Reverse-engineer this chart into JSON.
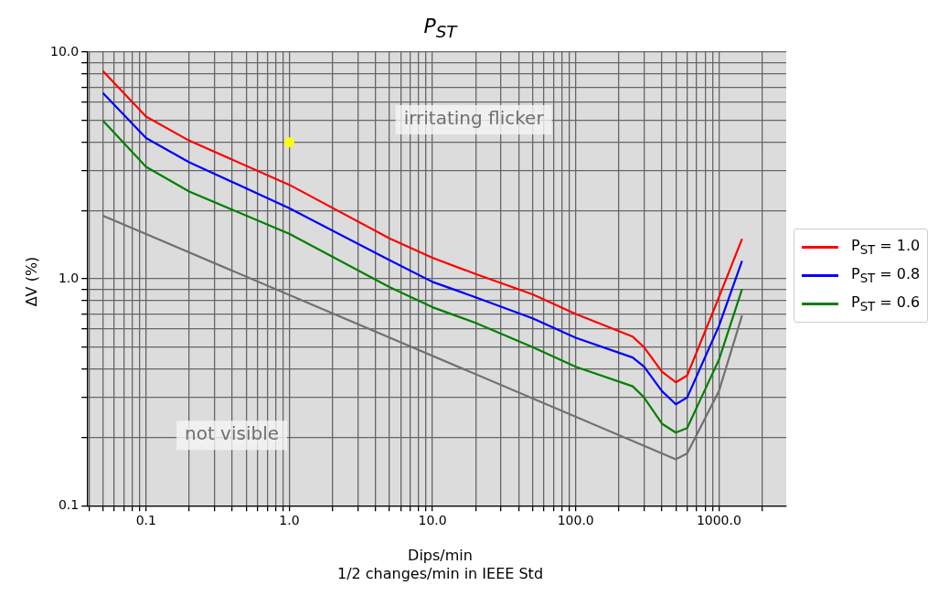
{
  "chart_data": {
    "type": "line",
    "title": "P$_{ST}$",
    "xlabel": "Dips/min\n1/2 changes/min in IEEE Std",
    "ylabel": "ΔV (%)",
    "log": "xy",
    "grid": true,
    "legend": "right",
    "xlim": [
      0.0387,
      2950
    ],
    "ylim": [
      0.1,
      10
    ],
    "xticks": [
      {
        "value": 0.04,
        "label": null
      },
      {
        "value": 0.05,
        "label": null
      },
      {
        "value": 0.06,
        "label": null
      },
      {
        "value": 0.07,
        "label": null
      },
      {
        "value": 0.08,
        "label": null
      },
      {
        "value": 0.09,
        "label": null
      },
      {
        "value": 0.1,
        "label": "0.1"
      },
      {
        "value": 0.2,
        "label": null
      },
      {
        "value": 0.3,
        "label": null
      },
      {
        "value": 0.4,
        "label": null
      },
      {
        "value": 0.5,
        "label": null
      },
      {
        "value": 0.6,
        "label": null
      },
      {
        "value": 0.7,
        "label": null
      },
      {
        "value": 0.8,
        "label": null
      },
      {
        "value": 0.9,
        "label": null
      },
      {
        "value": 1,
        "label": "1.0"
      },
      {
        "value": 2,
        "label": null
      },
      {
        "value": 3,
        "label": null
      },
      {
        "value": 4,
        "label": null
      },
      {
        "value": 5,
        "label": null
      },
      {
        "value": 6,
        "label": null
      },
      {
        "value": 7,
        "label": null
      },
      {
        "value": 8,
        "label": null
      },
      {
        "value": 9,
        "label": null
      },
      {
        "value": 10,
        "label": "10.0"
      },
      {
        "value": 20,
        "label": null
      },
      {
        "value": 30,
        "label": null
      },
      {
        "value": 40,
        "label": null
      },
      {
        "value": 50,
        "label": null
      },
      {
        "value": 60,
        "label": null
      },
      {
        "value": 70,
        "label": null
      },
      {
        "value": 80,
        "label": null
      },
      {
        "value": 90,
        "label": null
      },
      {
        "value": 100,
        "label": "100.0"
      },
      {
        "value": 200,
        "label": null
      },
      {
        "value": 300,
        "label": null
      },
      {
        "value": 400,
        "label": null
      },
      {
        "value": 500,
        "label": null
      },
      {
        "value": 600,
        "label": null
      },
      {
        "value": 700,
        "label": null
      },
      {
        "value": 800,
        "label": null
      },
      {
        "value": 900,
        "label": null
      },
      {
        "value": 1000,
        "label": "1000.0"
      },
      {
        "value": 2000,
        "label": null
      }
    ],
    "yticks": [
      {
        "value": 0.1,
        "label": "0.1"
      },
      {
        "value": 0.2,
        "label": null
      },
      {
        "value": 0.3,
        "label": null
      },
      {
        "value": 0.4,
        "label": null
      },
      {
        "value": 0.5,
        "label": null
      },
      {
        "value": 0.6,
        "label": null
      },
      {
        "value": 0.7,
        "label": null
      },
      {
        "value": 0.8,
        "label": null
      },
      {
        "value": 0.9,
        "label": null
      },
      {
        "value": 1,
        "label": "1.0"
      },
      {
        "value": 2,
        "label": null
      },
      {
        "value": 3,
        "label": null
      },
      {
        "value": 4,
        "label": null
      },
      {
        "value": 5,
        "label": null
      },
      {
        "value": 6,
        "label": null
      },
      {
        "value": 7,
        "label": null
      },
      {
        "value": 8,
        "label": null
      },
      {
        "value": 9,
        "label": null
      },
      {
        "value": 10,
        "label": "10.0"
      }
    ],
    "annotations": [
      "irritating flicker",
      "not visible"
    ],
    "series": [
      {
        "name": "P$_{ST}$ = 1.0",
        "color": "#ff0000",
        "x": [
          0.05,
          0.1,
          0.2,
          1,
          5,
          10,
          20,
          50,
          100,
          250,
          300,
          400,
          500,
          600,
          1000,
          1450
        ],
        "values": [
          8.25,
          5.2,
          4.07,
          2.6,
          1.51,
          1.24,
          1.05,
          0.855,
          0.7,
          0.556,
          0.5,
          0.39,
          0.35,
          0.375,
          0.83,
          1.5
        ]
      },
      {
        "name": "P$_{ST}$ = 0.8",
        "color": "#0000ff",
        "x": [
          0.05,
          0.1,
          0.2,
          1,
          5,
          10,
          20,
          50,
          100,
          250,
          300,
          400,
          500,
          600,
          1000,
          1450
        ],
        "values": [
          6.6,
          4.18,
          3.27,
          2.05,
          1.21,
          0.97,
          0.83,
          0.67,
          0.55,
          0.45,
          0.41,
          0.32,
          0.28,
          0.3,
          0.62,
          1.2
        ]
      },
      {
        "name": "P$_{ST}$ = 0.6",
        "color": "#008000",
        "x": [
          0.05,
          0.1,
          0.2,
          1,
          5,
          10,
          20,
          50,
          100,
          250,
          300,
          400,
          500,
          600,
          1000,
          1450
        ],
        "values": [
          4.98,
          3.12,
          2.43,
          1.58,
          0.92,
          0.75,
          0.64,
          0.5,
          0.41,
          0.336,
          0.3,
          0.23,
          0.21,
          0.22,
          0.44,
          0.9
        ]
      },
      {
        "color": "#707070",
        "x": [
          0.05,
          500,
          600,
          1000,
          1450
        ],
        "values": [
          1.9,
          0.16,
          0.17,
          0.32,
          0.69
        ]
      },
      {
        "type": "scatter",
        "marker": "circle",
        "color": "#ffff00",
        "x": [
          1
        ],
        "values": [
          4
        ]
      }
    ]
  }
}
